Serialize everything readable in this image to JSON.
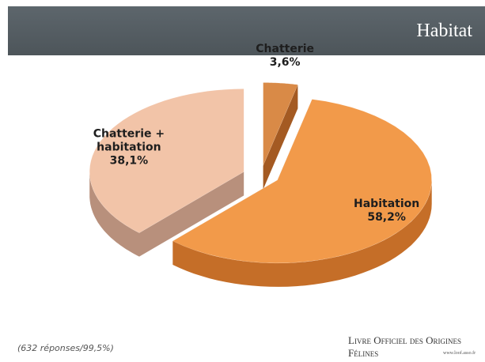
{
  "chart_data": {
    "type": "pie3d",
    "title": "Habitat",
    "categories": [
      "Chatterie",
      "Habitation",
      "Chatterie + habitation"
    ],
    "values": [
      3.6,
      58.2,
      38.1
    ],
    "value_labels": [
      "3,6%",
      "58,2%",
      "38,1%"
    ],
    "colors": [
      "#d98a47",
      "#f29a4a",
      "#f2c4a8"
    ],
    "side_colors": [
      "#a45a22",
      "#c56e28",
      "#b8907c"
    ]
  },
  "footnote": "(632 réponses/99,5%)",
  "logo": {
    "name": "Livre Officiel des Origines Félines",
    "url": "www.loof.asso.fr"
  }
}
